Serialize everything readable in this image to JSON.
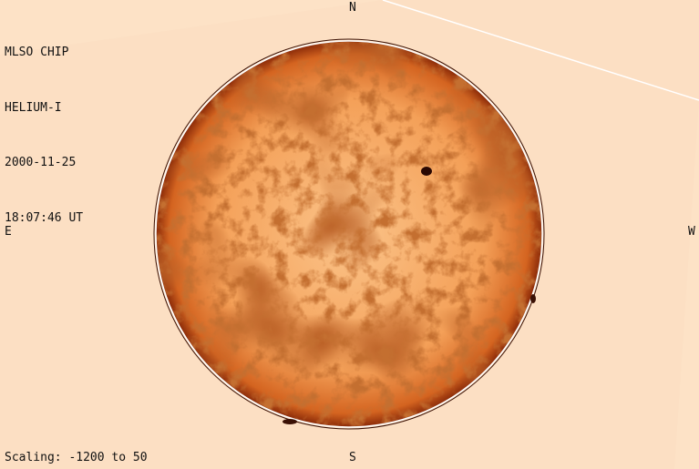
{
  "header": {
    "instrument": "MLSO CHIP",
    "wavelength": "HELIUM-I",
    "date": "2000-11-25",
    "time": "18:07:46 UT"
  },
  "footer": {
    "scaling": "Scaling: -1200 to 50"
  },
  "compass": {
    "north": "N",
    "south": "S",
    "east": "E",
    "west": "W"
  },
  "colors": {
    "background": "#fde2c6",
    "disk_light": "#f6a050",
    "disk_dark": "#8a2a08",
    "limb": "#ffffff"
  }
}
